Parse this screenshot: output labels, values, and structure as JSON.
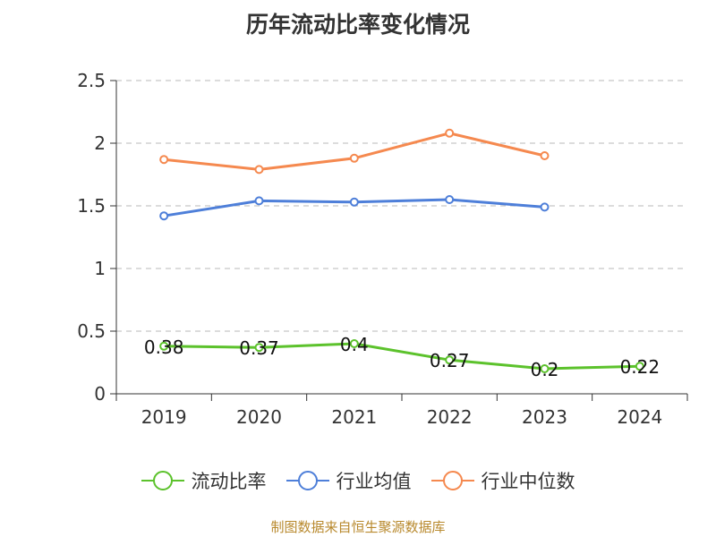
{
  "chart_data": {
    "type": "line",
    "title": "历年流动比率变化情况",
    "categories": [
      "2019",
      "2020",
      "2021",
      "2022",
      "2023",
      "2024"
    ],
    "ylim": [
      0,
      2.5
    ],
    "yticks": [
      "0",
      "0.5",
      "1",
      "1.5",
      "2",
      "2.5"
    ],
    "grid": true,
    "legend_position": "bottom",
    "series": [
      {
        "name": "流动比率",
        "color": "#5cc22c",
        "values": [
          0.38,
          0.37,
          0.4,
          0.27,
          0.2,
          0.22
        ],
        "labels": [
          "0.38",
          "0.37",
          "0.4",
          "0.27",
          "0.2",
          "0.22"
        ]
      },
      {
        "name": "行业均值",
        "color": "#4e7fd9",
        "values": [
          1.42,
          1.54,
          1.53,
          1.55,
          1.49,
          null
        ]
      },
      {
        "name": "行业中位数",
        "color": "#f5894f",
        "values": [
          1.87,
          1.79,
          1.88,
          2.08,
          1.9,
          null
        ]
      }
    ]
  },
  "source": "制图数据来自恒生聚源数据库"
}
